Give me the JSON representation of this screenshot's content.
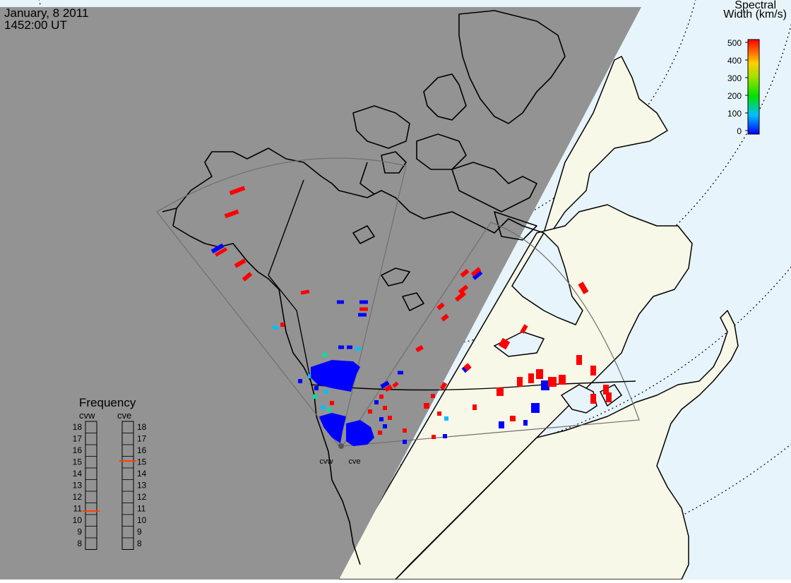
{
  "header": {
    "date": "January, 8 2011",
    "time": "1452:00 UT"
  },
  "colorbar": {
    "title_line1": "Spectral",
    "title_line2": "Width (km/s)",
    "ticks": [
      "500",
      "400",
      "300",
      "200",
      "100",
      "0"
    ],
    "range": [
      0,
      500
    ]
  },
  "frequency": {
    "title": "Frequency",
    "left_label": "cvw",
    "right_label": "cve",
    "scale": [
      "18",
      "17",
      "16",
      "15",
      "14",
      "13",
      "12",
      "11",
      "10",
      "9",
      "8"
    ],
    "cvw_value": 10.8,
    "cve_value": 15.1
  },
  "radars": [
    {
      "name": "cvw"
    },
    {
      "name": "cve"
    }
  ],
  "colors": {
    "night": "#939393",
    "ocean_day": "#e8f4fb",
    "land_day": "#f8f8e8",
    "fov": "#707070",
    "low": "#0000ff",
    "mid_low": "#00bfff",
    "mid": "#00e0a0",
    "high": "#ff0000"
  }
}
